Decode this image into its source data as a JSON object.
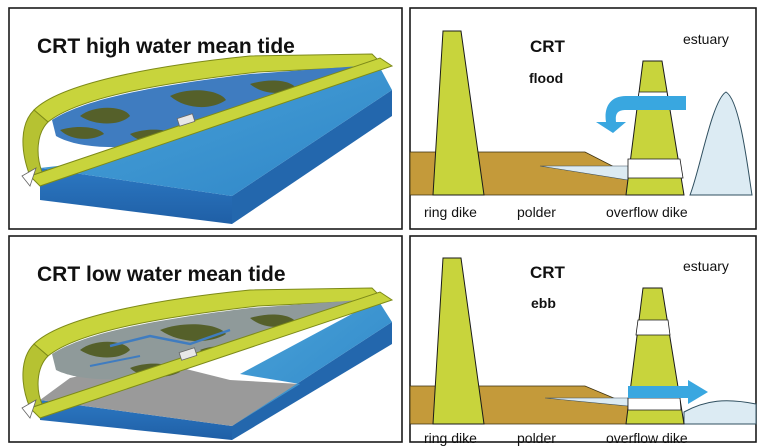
{
  "panels": {
    "top_left": {
      "title": "CRT high water mean tide"
    },
    "bottom_left": {
      "title": "CRT low water mean tide"
    },
    "top_right": {
      "heading": "CRT",
      "phase": "flood",
      "estuary_label": "estuary",
      "labels": {
        "ring_dike": "ring dike",
        "polder": "polder",
        "overflow_dike": "overflow dike"
      }
    },
    "bottom_right": {
      "heading": "CRT",
      "phase": "ebb",
      "estuary_label": "estuary",
      "labels": {
        "ring_dike": "ring dike",
        "polder": "polder",
        "overflow_dike": "overflow dike"
      }
    }
  },
  "colors": {
    "dike": "#c8d43c",
    "dike_shadow": "#8d9a1e",
    "polder_soil": "#c49a3a",
    "estuary_water": "#dcebf3",
    "estuary_blue": "#2f7ec8",
    "flow_arrow": "#39a7e0",
    "vegetation": "#55602a",
    "mudflat": "#9a9a9a"
  }
}
